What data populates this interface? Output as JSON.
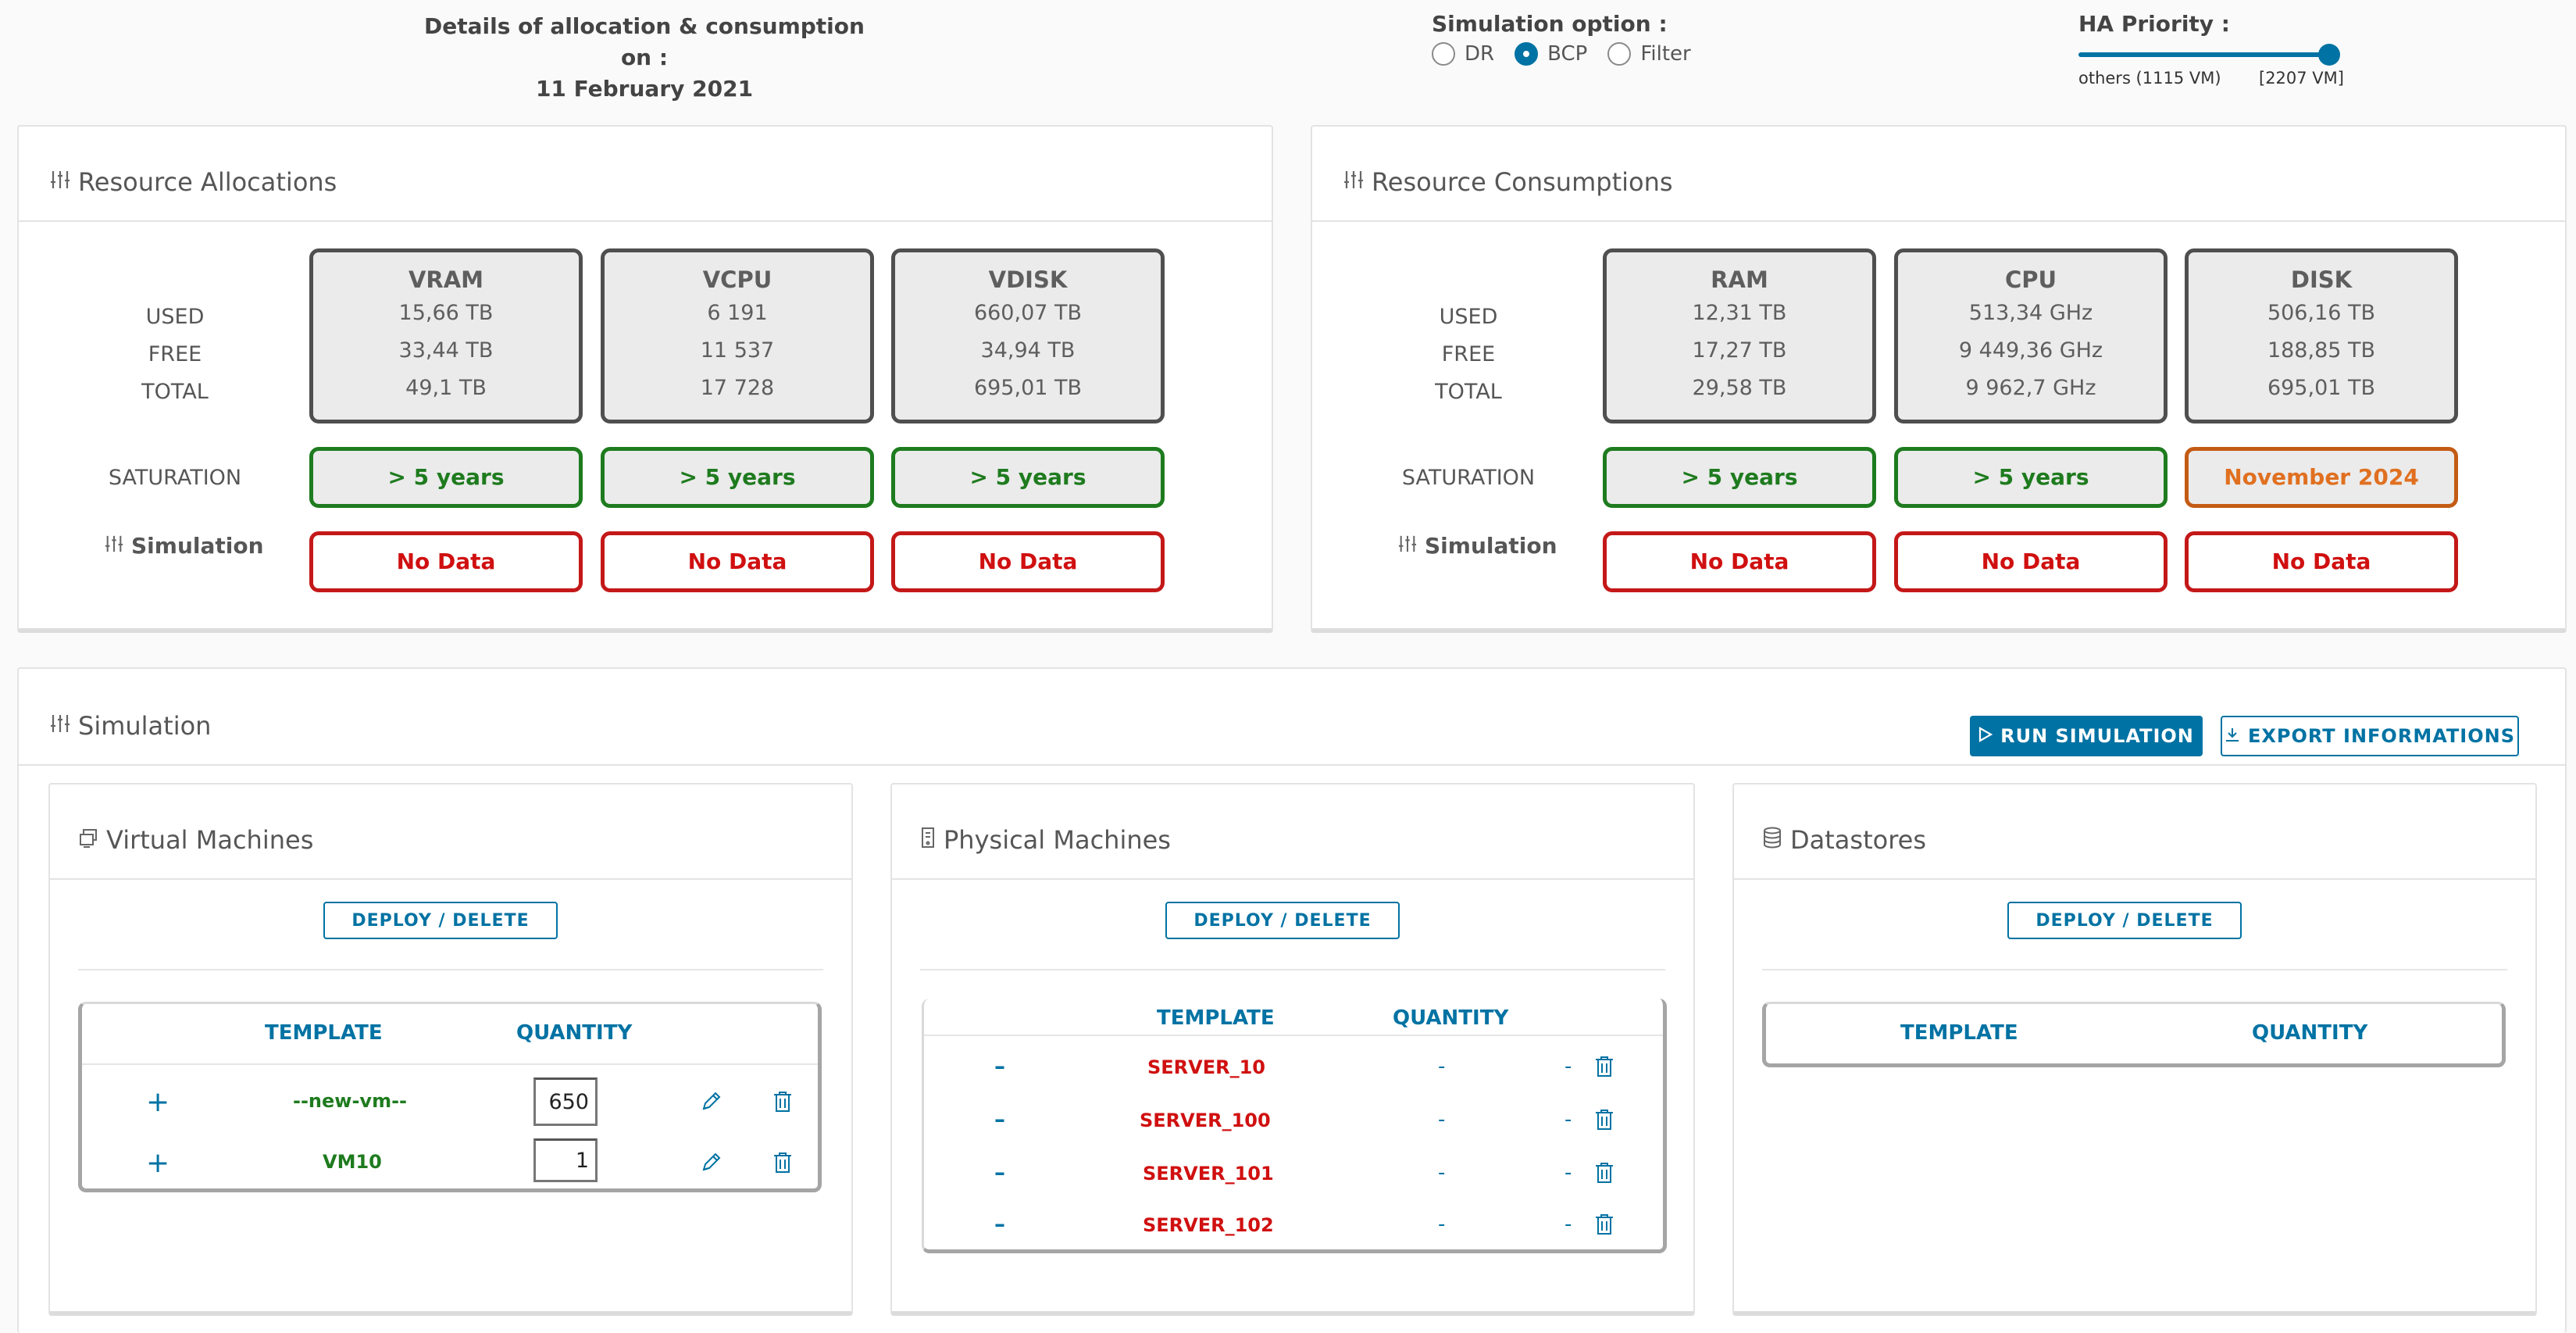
{
  "header": {
    "date_title_line1": "Details of allocation & consumption on :",
    "date_title_line2": "11 February 2021",
    "simulation_option_title": "Simulation option :",
    "options": [
      "DR",
      "BCP",
      "Filter"
    ],
    "selected_option": "BCP",
    "ha_priority_title": "HA Priority :",
    "ha_left_label": "others (1115 VM)",
    "ha_right_label": "[2207 VM]",
    "ha_slider_value": 1.0
  },
  "row_labels": {
    "used": "USED",
    "free": "FREE",
    "total": "TOTAL",
    "saturation": "SATURATION",
    "simulation": "Simulation"
  },
  "allocations": {
    "title": "Resource Allocations",
    "metrics": [
      {
        "name": "VRAM",
        "used": "15,66 TB",
        "free": "33,44 TB",
        "total": "49,1 TB",
        "saturation": "> 5 years",
        "simulation": "No Data"
      },
      {
        "name": "VCPU",
        "used": "6 191",
        "free": "11 537",
        "total": "17 728",
        "saturation": "> 5 years",
        "simulation": "No Data"
      },
      {
        "name": "VDISK",
        "used": "660,07 TB",
        "free": "34,94 TB",
        "total": "695,01 TB",
        "saturation": "> 5 years",
        "simulation": "No Data"
      }
    ]
  },
  "consumptions": {
    "title": "Resource Consumptions",
    "metrics": [
      {
        "name": "RAM",
        "used": "12,31 TB",
        "free": "17,27 TB",
        "total": "29,58 TB",
        "saturation": "> 5 years",
        "simulation": "No Data"
      },
      {
        "name": "CPU",
        "used": "513,34 GHz",
        "free": "9 449,36 GHz",
        "total": "9 962,7 GHz",
        "saturation": "> 5 years",
        "simulation": "No Data"
      },
      {
        "name": "DISK",
        "used": "506,16 TB",
        "free": "188,85 TB",
        "total": "695,01 TB",
        "saturation": "November 2024",
        "simulation": "No Data"
      }
    ]
  },
  "simulation": {
    "title": "Simulation",
    "run_label": "RUN SIMULATION",
    "export_label": "EXPORT INFORMATIONS",
    "deploy_label": "DEPLOY / DELETE",
    "template_header": "TEMPLATE",
    "quantity_header": "QUANTITY",
    "virtual_machines": {
      "title": "Virtual Machines",
      "rows": [
        {
          "template": "--new-vm--",
          "quantity": "650"
        },
        {
          "template": "VM10",
          "quantity": "1"
        }
      ]
    },
    "physical_machines": {
      "title": "Physical Machines",
      "rows": [
        {
          "template": "SERVER_10",
          "quantity": "-",
          "extra": "-"
        },
        {
          "template": "SERVER_100",
          "quantity": "-",
          "extra": "-"
        },
        {
          "template": "SERVER_101",
          "quantity": "-",
          "extra": "-"
        },
        {
          "template": "SERVER_102",
          "quantity": "-",
          "extra": "-"
        }
      ]
    },
    "datastores": {
      "title": "Datastores"
    }
  },
  "colors": {
    "accent": "#0072a3",
    "ok": "#1e7b1e",
    "warn": "#e07020",
    "error": "#d01010"
  }
}
